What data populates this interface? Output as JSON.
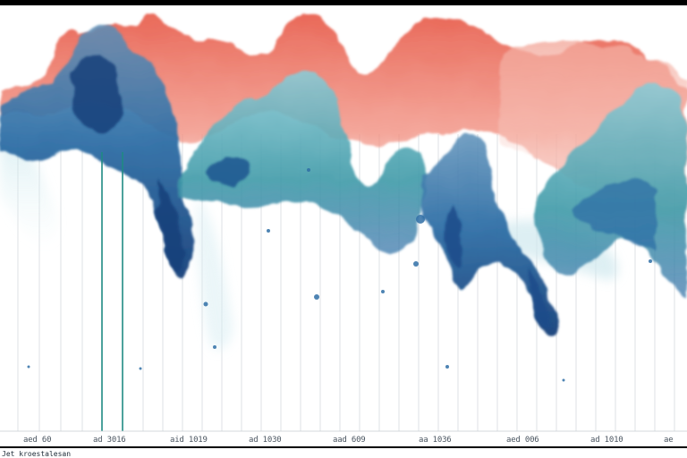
{
  "artwork": {
    "subject": "watercolor-wave-landscape",
    "palette": {
      "coral": "#e8604f",
      "blush": "#f3a99c",
      "navy": "#143f7a",
      "blue": "#2f6fa6",
      "teal": "#3f9aa8",
      "aqua": "#8ccbd6",
      "ice": "#d8eef2",
      "grid": "#c9ced3",
      "accent-line": "#1f8a83"
    }
  },
  "axis": {
    "tick_labels": [
      "aed 60",
      "ad 3016",
      "aid 1019",
      "ad 1030",
      "aad 609",
      "aa 1036",
      "aed 006",
      "ad 1010",
      "ae"
    ]
  },
  "footer": {
    "text": "Jet kroestalesan"
  }
}
